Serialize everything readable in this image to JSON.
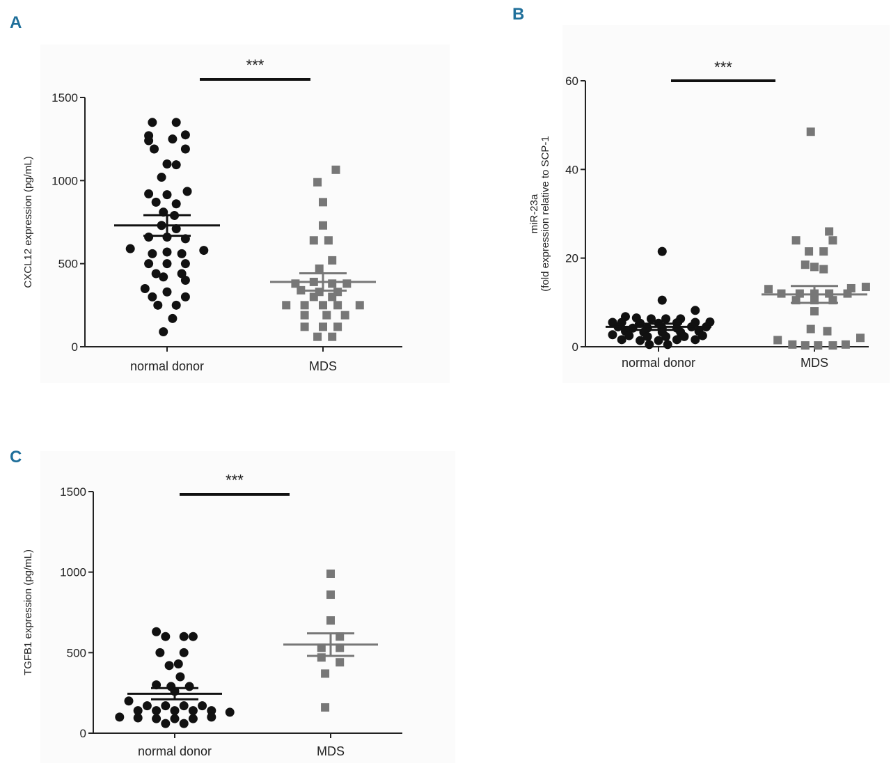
{
  "colors": {
    "panel_label": "#1f6f9a",
    "normal": "#111111",
    "mds": "#777777",
    "axis": "#222222"
  },
  "chart_data": [
    {
      "panel": "A",
      "type": "scatter",
      "ylabel": "CXCL12 expression (pg/mL)",
      "ylim": [
        0,
        1500
      ],
      "yticks": [
        "0",
        "500",
        "1000",
        "1500"
      ],
      "categories": [
        "normal donor",
        "MDS"
      ],
      "significance": "***",
      "series": [
        {
          "name": "normal donor",
          "marker": "circle",
          "mean": 730,
          "sem": 62,
          "points": [
            [
              -0.08,
              1350
            ],
            [
              0.05,
              1350
            ],
            [
              -0.1,
              1270
            ],
            [
              0.1,
              1275
            ],
            [
              -0.1,
              1240
            ],
            [
              0.03,
              1250
            ],
            [
              -0.07,
              1190
            ],
            [
              0.1,
              1190
            ],
            [
              0.0,
              1100
            ],
            [
              0.05,
              1095
            ],
            [
              -0.03,
              1020
            ],
            [
              -0.1,
              920
            ],
            [
              0.0,
              915
            ],
            [
              0.11,
              935
            ],
            [
              -0.06,
              870
            ],
            [
              0.05,
              860
            ],
            [
              -0.02,
              810
            ],
            [
              0.04,
              790
            ],
            [
              -0.03,
              730
            ],
            [
              0.05,
              710
            ],
            [
              0.0,
              660
            ],
            [
              -0.1,
              660
            ],
            [
              0.1,
              650
            ],
            [
              -0.2,
              590
            ],
            [
              -0.08,
              560
            ],
            [
              0.0,
              570
            ],
            [
              0.08,
              560
            ],
            [
              0.2,
              580
            ],
            [
              -0.1,
              500
            ],
            [
              0.0,
              500
            ],
            [
              0.1,
              500
            ],
            [
              -0.06,
              440
            ],
            [
              0.08,
              440
            ],
            [
              -0.02,
              420
            ],
            [
              0.1,
              400
            ],
            [
              -0.12,
              350
            ],
            [
              0.0,
              330
            ],
            [
              -0.08,
              300
            ],
            [
              0.1,
              300
            ],
            [
              -0.05,
              250
            ],
            [
              0.05,
              250
            ],
            [
              0.03,
              170
            ],
            [
              -0.02,
              90
            ]
          ]
        },
        {
          "name": "MDS",
          "marker": "square",
          "mean": 390,
          "sem": 52,
          "points": [
            [
              0.07,
              1065
            ],
            [
              -0.03,
              990
            ],
            [
              0.0,
              870
            ],
            [
              0.0,
              730
            ],
            [
              -0.05,
              640
            ],
            [
              0.03,
              640
            ],
            [
              0.05,
              520
            ],
            [
              -0.02,
              470
            ],
            [
              -0.15,
              380
            ],
            [
              -0.05,
              390
            ],
            [
              0.05,
              380
            ],
            [
              0.13,
              380
            ],
            [
              -0.12,
              340
            ],
            [
              -0.02,
              330
            ],
            [
              0.08,
              330
            ],
            [
              -0.05,
              300
            ],
            [
              0.05,
              300
            ],
            [
              -0.2,
              250
            ],
            [
              -0.1,
              250
            ],
            [
              0.0,
              250
            ],
            [
              0.08,
              250
            ],
            [
              0.2,
              250
            ],
            [
              -0.1,
              190
            ],
            [
              0.02,
              190
            ],
            [
              0.12,
              190
            ],
            [
              -0.1,
              120
            ],
            [
              0.0,
              120
            ],
            [
              0.08,
              120
            ],
            [
              -0.03,
              60
            ],
            [
              0.05,
              60
            ]
          ]
        }
      ]
    },
    {
      "panel": "B",
      "type": "scatter",
      "ylabel_line1": "miR-23a",
      "ylabel_line2": "(fold expression relative to SCP-1",
      "ylim": [
        0,
        60
      ],
      "yticks": [
        "0",
        "20",
        "40",
        "60"
      ],
      "categories": [
        "normal donor",
        "MDS"
      ],
      "significance": "***",
      "series": [
        {
          "name": "normal donor",
          "marker": "circle",
          "mean": 4.5,
          "sem": 0.7,
          "points": [
            [
              0.02,
              21.5
            ],
            [
              0.02,
              10.5
            ],
            [
              0.2,
              8.2
            ],
            [
              -0.18,
              6.8
            ],
            [
              -0.12,
              6.5
            ],
            [
              -0.04,
              6.3
            ],
            [
              0.04,
              6.3
            ],
            [
              0.12,
              6.3
            ],
            [
              -0.25,
              5.5
            ],
            [
              -0.2,
              5.5
            ],
            [
              -0.1,
              5.3
            ],
            [
              0.0,
              5.3
            ],
            [
              0.1,
              5.4
            ],
            [
              0.2,
              5.5
            ],
            [
              0.28,
              5.6
            ],
            [
              -0.22,
              4.5
            ],
            [
              -0.14,
              4.2
            ],
            [
              -0.06,
              4.2
            ],
            [
              0.02,
              4.2
            ],
            [
              0.1,
              4.2
            ],
            [
              0.18,
              4.5
            ],
            [
              0.26,
              4.5
            ],
            [
              -0.18,
              3.5
            ],
            [
              -0.08,
              3.3
            ],
            [
              0.02,
              3.3
            ],
            [
              0.12,
              3.3
            ],
            [
              0.22,
              3.5
            ],
            [
              -0.25,
              2.7
            ],
            [
              -0.16,
              2.5
            ],
            [
              -0.06,
              2.3
            ],
            [
              0.04,
              2.3
            ],
            [
              0.14,
              2.3
            ],
            [
              0.24,
              2.5
            ],
            [
              -0.2,
              1.6
            ],
            [
              -0.1,
              1.4
            ],
            [
              0.0,
              1.4
            ],
            [
              0.1,
              1.6
            ],
            [
              0.2,
              1.6
            ],
            [
              -0.05,
              0.5
            ],
            [
              0.05,
              0.5
            ]
          ]
        },
        {
          "name": "MDS",
          "marker": "square",
          "mean": 11.8,
          "sem": 1.9,
          "points": [
            [
              -0.02,
              48.5
            ],
            [
              0.08,
              26
            ],
            [
              -0.1,
              24
            ],
            [
              0.1,
              24
            ],
            [
              -0.03,
              21.5
            ],
            [
              0.05,
              21.5
            ],
            [
              -0.05,
              18.5
            ],
            [
              0.0,
              18
            ],
            [
              0.05,
              17.5
            ],
            [
              -0.25,
              13
            ],
            [
              0.2,
              13.2
            ],
            [
              0.28,
              13.5
            ],
            [
              -0.18,
              12
            ],
            [
              -0.08,
              12
            ],
            [
              0.0,
              12
            ],
            [
              0.08,
              12
            ],
            [
              0.18,
              12
            ],
            [
              -0.1,
              10.5
            ],
            [
              0.0,
              10.5
            ],
            [
              0.1,
              10.5
            ],
            [
              0.0,
              8
            ],
            [
              -0.02,
              4
            ],
            [
              0.07,
              3.5
            ],
            [
              -0.2,
              1.5
            ],
            [
              0.25,
              2
            ],
            [
              -0.12,
              0.5
            ],
            [
              -0.05,
              0.3
            ],
            [
              0.02,
              0.3
            ],
            [
              0.1,
              0.3
            ],
            [
              0.17,
              0.5
            ]
          ]
        }
      ]
    },
    {
      "panel": "C",
      "type": "scatter",
      "ylabel": "TGFB1 expression (pg/mL)",
      "ylim": [
        0,
        1500
      ],
      "yticks": [
        "0",
        "500",
        "1000",
        "1500"
      ],
      "categories": [
        "normal donor",
        "MDS"
      ],
      "significance": "***",
      "series": [
        {
          "name": "normal donor",
          "marker": "circle",
          "mean": 245,
          "sem": 35,
          "points": [
            [
              -0.1,
              630
            ],
            [
              0.05,
              600
            ],
            [
              -0.05,
              600
            ],
            [
              0.1,
              600
            ],
            [
              -0.08,
              500
            ],
            [
              0.05,
              500
            ],
            [
              -0.03,
              420
            ],
            [
              0.02,
              430
            ],
            [
              0.03,
              350
            ],
            [
              -0.1,
              300
            ],
            [
              -0.02,
              290
            ],
            [
              0.08,
              290
            ],
            [
              0.0,
              260
            ],
            [
              -0.25,
              200
            ],
            [
              -0.15,
              170
            ],
            [
              -0.05,
              170
            ],
            [
              0.05,
              170
            ],
            [
              0.15,
              170
            ],
            [
              -0.2,
              140
            ],
            [
              -0.1,
              140
            ],
            [
              0.0,
              140
            ],
            [
              0.1,
              140
            ],
            [
              0.2,
              140
            ],
            [
              0.3,
              130
            ],
            [
              -0.3,
              100
            ],
            [
              -0.2,
              95
            ],
            [
              -0.1,
              90
            ],
            [
              0.0,
              90
            ],
            [
              0.1,
              90
            ],
            [
              0.2,
              100
            ],
            [
              -0.05,
              60
            ],
            [
              0.05,
              60
            ]
          ]
        },
        {
          "name": "MDS",
          "marker": "square",
          "mean": 550,
          "sem": 70,
          "points": [
            [
              0.0,
              990
            ],
            [
              0.0,
              860
            ],
            [
              0.0,
              700
            ],
            [
              0.05,
              600
            ],
            [
              -0.05,
              530
            ],
            [
              0.05,
              530
            ],
            [
              -0.05,
              470
            ],
            [
              0.05,
              440
            ],
            [
              -0.03,
              370
            ],
            [
              -0.03,
              160
            ]
          ]
        }
      ]
    }
  ]
}
